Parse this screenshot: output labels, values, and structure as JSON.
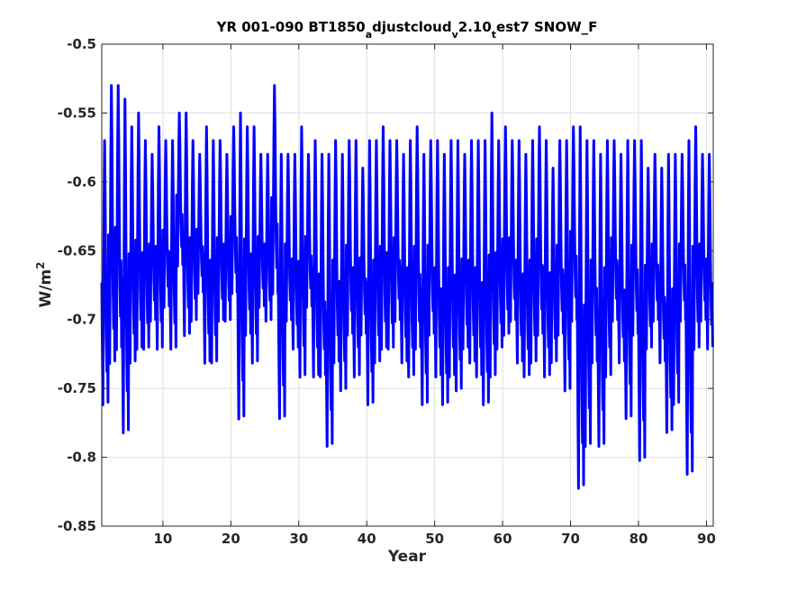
{
  "chart_data": {
    "type": "line",
    "title": {
      "parts": [
        {
          "text": "YR 001-090 BT1850",
          "sub": false
        },
        {
          "text": "a",
          "sub": true
        },
        {
          "text": "djustcloud",
          "sub": false
        },
        {
          "text": "v",
          "sub": true
        },
        {
          "text": "2.10",
          "sub": false
        },
        {
          "text": "t",
          "sub": true
        },
        {
          "text": "est7 SNOW_F",
          "sub": false
        }
      ]
    },
    "xlabel": "Year",
    "ylabel": {
      "base": "W/m",
      "sup": "2"
    },
    "xlim": [
      1,
      91
    ],
    "ylim": [
      -0.85,
      -0.5
    ],
    "xticks": [
      10,
      20,
      30,
      40,
      50,
      60,
      70,
      80,
      90
    ],
    "xtick_labels": [
      "10",
      "20",
      "30",
      "40",
      "50",
      "60",
      "70",
      "80",
      "90"
    ],
    "yticks": [
      -0.85,
      -0.8,
      -0.75,
      -0.7,
      -0.65,
      -0.6,
      -0.55,
      -0.5
    ],
    "ytick_labels": [
      "-0.85",
      "-0.8",
      "-0.75",
      "-0.7",
      "-0.65",
      "-0.6",
      "-0.55",
      "-0.5"
    ],
    "grid": true,
    "series": [
      {
        "color": "#0000ff",
        "sampling": "monthly",
        "x_start": 1,
        "peaks": [
          -0.57,
          -0.53,
          -0.53,
          -0.54,
          -0.56,
          -0.55,
          -0.57,
          -0.58,
          -0.56,
          -0.57,
          -0.57,
          -0.55,
          -0.55,
          -0.57,
          -0.58,
          -0.56,
          -0.57,
          -0.57,
          -0.58,
          -0.56,
          -0.55,
          -0.56,
          -0.56,
          -0.58,
          -0.58,
          -0.53,
          -0.58,
          -0.58,
          -0.58,
          -0.56,
          -0.58,
          -0.57,
          -0.58,
          -0.58,
          -0.57,
          -0.58,
          -0.57,
          -0.57,
          -0.59,
          -0.57,
          -0.57,
          -0.56,
          -0.57,
          -0.57,
          -0.58,
          -0.57,
          -0.56,
          -0.58,
          -0.57,
          -0.57,
          -0.58,
          -0.57,
          -0.57,
          -0.58,
          -0.57,
          -0.57,
          -0.57,
          -0.55,
          -0.57,
          -0.56,
          -0.57,
          -0.57,
          -0.58,
          -0.57,
          -0.56,
          -0.57,
          -0.59,
          -0.57,
          -0.57,
          -0.56,
          -0.56,
          -0.57,
          -0.57,
          -0.58,
          -0.57,
          -0.57,
          -0.58,
          -0.57,
          -0.57,
          -0.57,
          -0.59,
          -0.58,
          -0.59,
          -0.58,
          -0.58,
          -0.58,
          -0.57,
          -0.56,
          -0.58,
          -0.58
        ],
        "troughs": [
          -0.76,
          -0.73,
          -0.72,
          -0.78,
          -0.73,
          -0.72,
          -0.72,
          -0.7,
          -0.72,
          -0.69,
          -0.72,
          -0.66,
          -0.71,
          -0.7,
          -0.68,
          -0.73,
          -0.73,
          -0.7,
          -0.7,
          -0.68,
          -0.77,
          -0.71,
          -0.73,
          -0.69,
          -0.7,
          -0.68,
          -0.77,
          -0.7,
          -0.72,
          -0.74,
          -0.69,
          -0.74,
          -0.74,
          -0.79,
          -0.73,
          -0.75,
          -0.71,
          -0.74,
          -0.71,
          -0.76,
          -0.73,
          -0.72,
          -0.72,
          -0.7,
          -0.73,
          -0.74,
          -0.72,
          -0.76,
          -0.71,
          -0.74,
          -0.76,
          -0.74,
          -0.75,
          -0.72,
          -0.73,
          -0.74,
          -0.76,
          -0.74,
          -0.72,
          -0.71,
          -0.7,
          -0.73,
          -0.74,
          -0.73,
          -0.71,
          -0.74,
          -0.73,
          -0.71,
          -0.75,
          -0.7,
          -0.82,
          -0.79,
          -0.73,
          -0.79,
          -0.74,
          -0.7,
          -0.73,
          -0.77,
          -0.71,
          -0.8,
          -0.72,
          -0.7,
          -0.73,
          -0.78,
          -0.76,
          -0.7,
          -0.81,
          -0.72,
          -0.7,
          -0.72
        ]
      }
    ]
  }
}
